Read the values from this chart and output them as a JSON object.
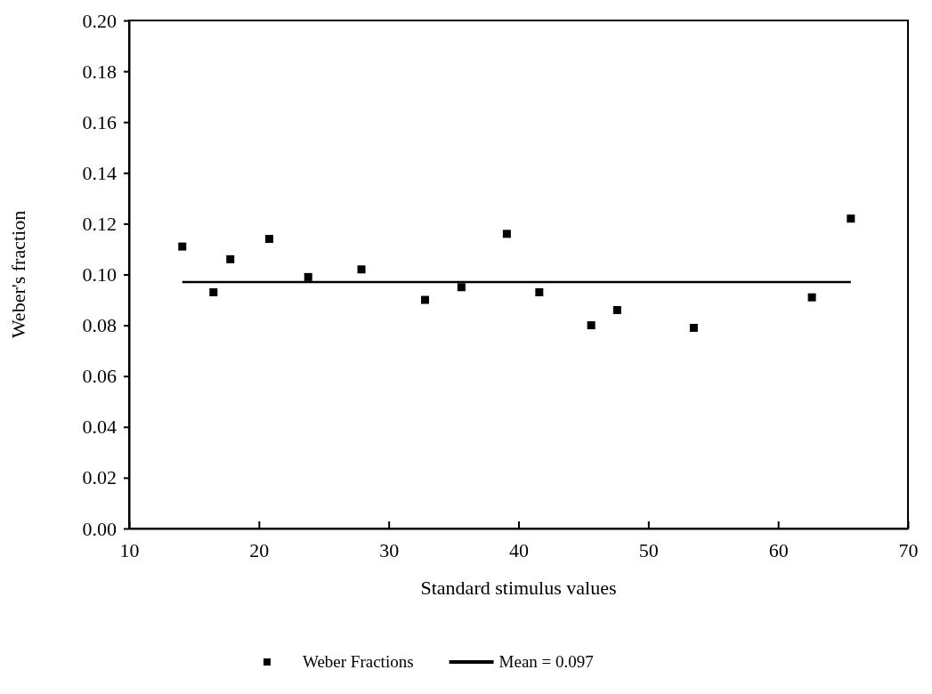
{
  "chart_data": {
    "type": "scatter",
    "xlabel": "Standard stimulus values",
    "ylabel": "Weber's fraction",
    "xlim": [
      10,
      70
    ],
    "xticks": [
      10,
      20,
      30,
      40,
      50,
      60,
      70
    ],
    "ylim": [
      0,
      0.2
    ],
    "yticks": [
      {
        "value": 0,
        "label": "0.00"
      },
      {
        "value": 0.02,
        "label": "0.02"
      },
      {
        "value": 0.04,
        "label": "0.04"
      },
      {
        "value": 0.06,
        "label": "0.06"
      },
      {
        "value": 0.08,
        "label": "0.08"
      },
      {
        "value": 0.1,
        "label": "0.10"
      },
      {
        "value": 0.12,
        "label": "0.12"
      },
      {
        "value": 0.14,
        "label": "0.14"
      },
      {
        "value": 0.16,
        "label": "0.16"
      },
      {
        "value": 0.18,
        "label": "0.18"
      },
      {
        "value": 0.2,
        "label": "0.20"
      }
    ],
    "grid": false,
    "legend": "bottom",
    "series": [
      {
        "name": "Weber Fractions",
        "marker": "square",
        "color": "#000000",
        "x": [
          14.1,
          16.5,
          17.8,
          20.8,
          23.8,
          27.9,
          32.8,
          35.6,
          39.1,
          41.6,
          45.6,
          47.6,
          53.5,
          62.6,
          65.6
        ],
        "values": [
          0.111,
          0.093,
          0.106,
          0.114,
          0.099,
          0.102,
          0.09,
          0.095,
          0.116,
          0.093,
          0.08,
          0.086,
          0.079,
          0.091,
          0.122
        ]
      },
      {
        "name": "Mean = 0.097",
        "type": "line",
        "marker": "none",
        "color": "#000000",
        "x": [
          14.1,
          65.6
        ],
        "values": [
          0.097,
          0.097
        ]
      }
    ]
  }
}
